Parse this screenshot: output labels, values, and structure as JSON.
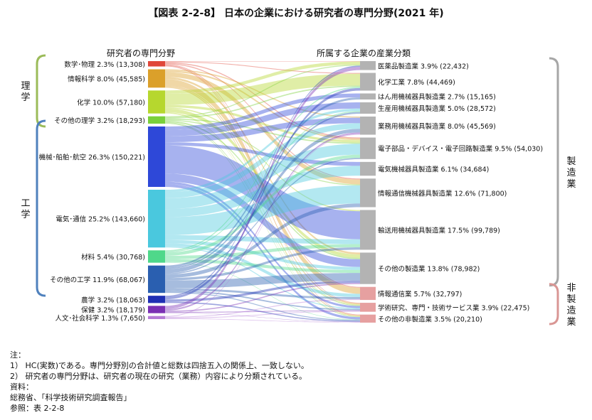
{
  "title": "【図表 2-2-8】 日本の企業における研究者の専門分野(2021 年)",
  "left_header": "研究者の専門分野",
  "right_header": "所属する企業の産業分類",
  "left_groups": [
    {
      "label": "理\n学",
      "color": "#9bbb59",
      "from": 0,
      "to": 3
    },
    {
      "label": "工\n学",
      "color": "#4f81bd",
      "from": 4,
      "to": 7
    }
  ],
  "right_groups": [
    {
      "label": "製\n造\n業",
      "color": "#a6a6a6",
      "from": 0,
      "to": 9
    },
    {
      "label": "非\n製\n造\n業",
      "color": "#d99694",
      "from": 10,
      "to": 12
    }
  ],
  "chart_data": {
    "type": "sankey",
    "sources": [
      {
        "label": "数学･物理 2.3% (13,308)",
        "value": 13308,
        "color": "#e0473a"
      },
      {
        "label": "情報科学 8.0% (45,585)",
        "value": 45585,
        "color": "#dba02a"
      },
      {
        "label": "化学 10.0% (57,180)",
        "value": 57180,
        "color": "#b6d72e"
      },
      {
        "label": "その他の理学 3.2% (18,293)",
        "value": 18293,
        "color": "#7ad03a"
      },
      {
        "label": "機械･船舶･航空 26.3% (150,221)",
        "value": 150221,
        "color": "#2e48d8"
      },
      {
        "label": "電気･通信 25.2% (143,660)",
        "value": 143660,
        "color": "#4ac8de"
      },
      {
        "label": "材料 5.4% (30,768)",
        "value": 30768,
        "color": "#4fd88a"
      },
      {
        "label": "その他の工学 11.9% (68,067)",
        "value": 68067,
        "color": "#2a5fb0"
      },
      {
        "label": "農学 3.2% (18,063)",
        "value": 18063,
        "color": "#1f2fb4"
      },
      {
        "label": "保健 3.2% (18,179)",
        "value": 18179,
        "color": "#7a2fb4"
      },
      {
        "label": "人文･社会科学 1.3% (7,650)",
        "value": 7650,
        "color": "#b57ad6"
      }
    ],
    "targets": [
      {
        "label": "医薬品製造業 3.9% (22,432)",
        "value": 22432
      },
      {
        "label": "化学工業 7.8% (44,469)",
        "value": 44469
      },
      {
        "label": "はん用機械器具製造業 2.7% (15,165)",
        "value": 15165
      },
      {
        "label": "生産用機械器具製造業 5.0% (28,572)",
        "value": 28572
      },
      {
        "label": "業務用機械器具製造業 8.0% (45,569)",
        "value": 45569
      },
      {
        "label": "電子部品・デバイス・電子回路製造業 9.5% (54,030)",
        "value": 54030
      },
      {
        "label": "電気機械器具製造業 6.1% (34,684)",
        "value": 34684
      },
      {
        "label": "情報通信機械器具製造業 12.6% (71,800)",
        "value": 71800
      },
      {
        "label": "輸送用機械器具製造業 17.5% (99,789)",
        "value": 99789
      },
      {
        "label": "その他の製造業 13.8% (78,982)",
        "value": 78982
      },
      {
        "label": "情報通信業 5.7% (32,797)",
        "value": 32797
      },
      {
        "label": "学術研究、専門・技術サービス業 3.9% (22,475)",
        "value": 22475
      },
      {
        "label": "その他の非製造業 3.5% (20,210)",
        "value": 20210
      }
    ],
    "target_colors": {
      "manufacturing": "#b3b3b3",
      "non_manufacturing": "#e6a0a0"
    },
    "flows": [
      [
        0,
        0,
        1000
      ],
      [
        0,
        1,
        2000
      ],
      [
        0,
        5,
        2500
      ],
      [
        0,
        7,
        2500
      ],
      [
        0,
        10,
        2000
      ],
      [
        0,
        11,
        1500
      ],
      [
        0,
        12,
        1808
      ],
      [
        1,
        4,
        3000
      ],
      [
        1,
        5,
        4000
      ],
      [
        1,
        7,
        12000
      ],
      [
        1,
        9,
        5000
      ],
      [
        1,
        10,
        15000
      ],
      [
        1,
        11,
        3500
      ],
      [
        1,
        12,
        3085
      ],
      [
        2,
        0,
        8000
      ],
      [
        2,
        1,
        28000
      ],
      [
        2,
        5,
        6000
      ],
      [
        2,
        9,
        9000
      ],
      [
        2,
        8,
        3000
      ],
      [
        2,
        11,
        2000
      ],
      [
        2,
        12,
        1180
      ],
      [
        3,
        0,
        2500
      ],
      [
        3,
        1,
        3000
      ],
      [
        3,
        5,
        3000
      ],
      [
        3,
        7,
        2500
      ],
      [
        3,
        9,
        3500
      ],
      [
        3,
        11,
        2000
      ],
      [
        3,
        12,
        1793
      ],
      [
        4,
        2,
        9000
      ],
      [
        4,
        3,
        15000
      ],
      [
        4,
        4,
        15000
      ],
      [
        4,
        6,
        8000
      ],
      [
        4,
        8,
        70000
      ],
      [
        4,
        9,
        20000
      ],
      [
        4,
        11,
        6000
      ],
      [
        4,
        12,
        7221
      ],
      [
        5,
        3,
        6000
      ],
      [
        5,
        4,
        15000
      ],
      [
        5,
        5,
        27000
      ],
      [
        5,
        6,
        20000
      ],
      [
        5,
        7,
        45000
      ],
      [
        5,
        8,
        12000
      ],
      [
        5,
        9,
        8000
      ],
      [
        5,
        10,
        8000
      ],
      [
        5,
        11,
        2660
      ],
      [
        6,
        1,
        3000
      ],
      [
        6,
        3,
        2500
      ],
      [
        6,
        5,
        8000
      ],
      [
        6,
        8,
        8000
      ],
      [
        6,
        9,
        7768
      ],
      [
        6,
        12,
        1500
      ],
      [
        7,
        2,
        5000
      ],
      [
        7,
        3,
        4000
      ],
      [
        7,
        4,
        10000
      ],
      [
        7,
        5,
        3000
      ],
      [
        7,
        7,
        9000
      ],
      [
        7,
        8,
        6000
      ],
      [
        7,
        9,
        20000
      ],
      [
        7,
        10,
        5000
      ],
      [
        7,
        11,
        3500
      ],
      [
        7,
        12,
        2567
      ],
      [
        8,
        0,
        3000
      ],
      [
        8,
        1,
        6000
      ],
      [
        8,
        9,
        6000
      ],
      [
        8,
        12,
        3063
      ],
      [
        9,
        0,
        8000
      ],
      [
        9,
        4,
        4000
      ],
      [
        9,
        9,
        3000
      ],
      [
        9,
        11,
        2179
      ],
      [
        9,
        12,
        1000
      ],
      [
        10,
        4,
        2000
      ],
      [
        10,
        10,
        2000
      ],
      [
        10,
        11,
        2000
      ],
      [
        10,
        12,
        1650
      ]
    ]
  },
  "notes": [
    "注：",
    "1） HC(実数)である。専門分野別の合計値と総数は四捨五入の関係上、一致しない。",
    "2） 研究者の専門分野は、研究者の現在の研究（業務）内容により分類されている。",
    "資料：",
    "総務省、「科学技術研究調査報告」",
    "参照：表 2-2-8"
  ]
}
